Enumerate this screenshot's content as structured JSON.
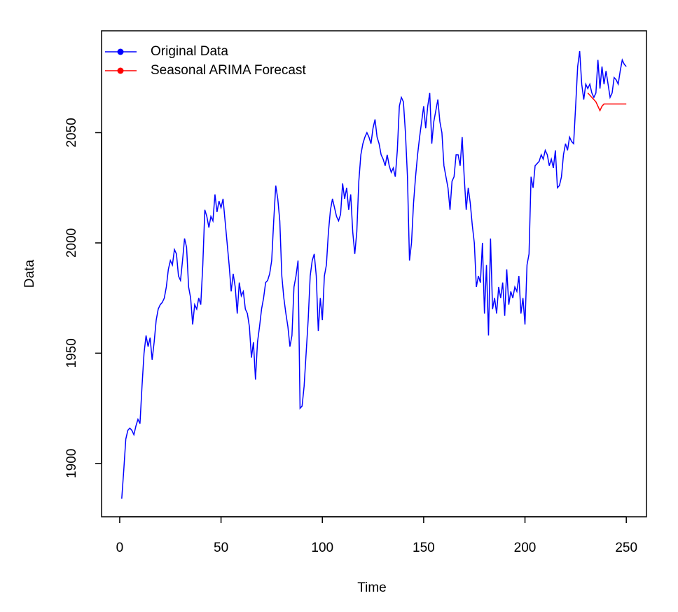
{
  "chart_data": {
    "type": "line",
    "xlabel": "Time",
    "ylabel": "Data",
    "xlim": [
      -8.96,
      259.96
    ],
    "ylim": [
      1875.8,
      2096.2
    ],
    "xticks": [
      0,
      50,
      100,
      150,
      200,
      250
    ],
    "yticks": [
      1900,
      1950,
      2000,
      2050
    ],
    "legend": "top-left",
    "series": [
      {
        "name": "Original Data",
        "color": "#0000ff",
        "x": [
          1,
          2,
          3,
          4,
          5,
          6,
          7,
          8,
          9,
          10,
          11,
          12,
          13,
          14,
          15,
          16,
          17,
          18,
          19,
          20,
          21,
          22,
          23,
          24,
          25,
          26,
          27,
          28,
          29,
          30,
          31,
          32,
          33,
          34,
          35,
          36,
          37,
          38,
          39,
          40,
          41,
          42,
          43,
          44,
          45,
          46,
          47,
          48,
          49,
          50,
          51,
          52,
          53,
          54,
          55,
          56,
          57,
          58,
          59,
          60,
          61,
          62,
          63,
          64,
          65,
          66,
          67,
          68,
          69,
          70,
          71,
          72,
          73,
          74,
          75,
          76,
          77,
          78,
          79,
          80,
          81,
          82,
          83,
          84,
          85,
          86,
          87,
          88,
          89,
          90,
          91,
          92,
          93,
          94,
          95,
          96,
          97,
          98,
          99,
          100,
          101,
          102,
          103,
          104,
          105,
          106,
          107,
          108,
          109,
          110,
          111,
          112,
          113,
          114,
          115,
          116,
          117,
          118,
          119,
          120,
          121,
          122,
          123,
          124,
          125,
          126,
          127,
          128,
          129,
          130,
          131,
          132,
          133,
          134,
          135,
          136,
          137,
          138,
          139,
          140,
          141,
          142,
          143,
          144,
          145,
          146,
          147,
          148,
          149,
          150,
          151,
          152,
          153,
          154,
          155,
          156,
          157,
          158,
          159,
          160,
          161,
          162,
          163,
          164,
          165,
          166,
          167,
          168,
          169,
          170,
          171,
          172,
          173,
          174,
          175,
          176,
          177,
          178,
          179,
          180,
          181,
          182,
          183,
          184,
          185,
          186,
          187,
          188,
          189,
          190,
          191,
          192,
          193,
          194,
          195,
          196,
          197,
          198,
          199,
          200,
          201,
          202,
          203,
          204,
          205,
          206,
          207,
          208,
          209,
          210,
          211,
          212,
          213,
          214,
          215,
          216,
          217,
          218,
          219,
          220,
          221,
          222,
          223,
          224,
          225,
          226,
          227,
          228,
          229,
          230,
          231,
          232,
          233,
          234,
          235,
          236,
          237,
          238,
          239,
          240,
          241,
          242,
          243,
          244,
          245,
          246,
          247,
          248,
          249,
          250
        ],
        "values": [
          1884,
          1897,
          1911,
          1915,
          1916,
          1915,
          1913,
          1917,
          1920,
          1918,
          1935,
          1950,
          1958,
          1953,
          1957,
          1947,
          1955,
          1965,
          1970,
          1972,
          1973,
          1975,
          1980,
          1988,
          1992,
          1990,
          1997,
          1995,
          1985,
          1983,
          1992,
          2002,
          1998,
          1980,
          1975,
          1963,
          1972,
          1970,
          1975,
          1972,
          1990,
          2015,
          2012,
          2007,
          2012,
          2010,
          2022,
          2014,
          2019,
          2016,
          2020,
          2010,
          2000,
          1990,
          1978,
          1986,
          1980,
          1968,
          1982,
          1976,
          1978,
          1970,
          1968,
          1962,
          1948,
          1955,
          1938,
          1955,
          1962,
          1970,
          1975,
          1982,
          1983,
          1986,
          1992,
          2010,
          2026,
          2020,
          2010,
          1985,
          1975,
          1968,
          1962,
          1953,
          1958,
          1980,
          1985,
          1992,
          1925,
          1926,
          1935,
          1950,
          1965,
          1985,
          1992,
          1995,
          1985,
          1960,
          1975,
          1965,
          1985,
          1990,
          2005,
          2015,
          2020,
          2016,
          2012,
          2010,
          2013,
          2027,
          2020,
          2025,
          2015,
          2022,
          2005,
          1995,
          2005,
          2028,
          2040,
          2045,
          2048,
          2050,
          2048,
          2045,
          2052,
          2056,
          2048,
          2045,
          2040,
          2038,
          2035,
          2040,
          2035,
          2032,
          2034,
          2030,
          2042,
          2062,
          2066,
          2064,
          2050,
          2030,
          1992,
          2000,
          2018,
          2030,
          2040,
          2048,
          2055,
          2062,
          2052,
          2062,
          2068,
          2045,
          2055,
          2060,
          2065,
          2055,
          2050,
          2035,
          2030,
          2025,
          2015,
          2028,
          2030,
          2040,
          2040,
          2035,
          2048,
          2030,
          2015,
          2025,
          2018,
          2008,
          2000,
          1980,
          1985,
          1982,
          2000,
          1968,
          1990,
          1958,
          2002,
          1970,
          1975,
          1968,
          1980,
          1975,
          1982,
          1967,
          1988,
          1972,
          1978,
          1975,
          1980,
          1978,
          1985,
          1968,
          1975,
          1963,
          1990,
          1995,
          2030,
          2025,
          2035,
          2036,
          2037,
          2040,
          2038,
          2042,
          2040,
          2035,
          2038,
          2034,
          2042,
          2025,
          2026,
          2030,
          2040,
          2045,
          2042,
          2048,
          2046,
          2045,
          2062,
          2080,
          2087,
          2072,
          2065,
          2072,
          2070,
          2072,
          2068,
          2066,
          2068,
          2083,
          2070,
          2080,
          2072,
          2078,
          2072,
          2066,
          2068,
          2075,
          2074,
          2072,
          2078,
          2083,
          2081,
          2080
        ]
      },
      {
        "name": "Seasonal ARIMA Forecast",
        "color": "#ff0000",
        "x": [
          231,
          232,
          233,
          234,
          235,
          236,
          237,
          238,
          239,
          240,
          241,
          242,
          243,
          244,
          245,
          246,
          247,
          248,
          249,
          250
        ],
        "values": [
          2068,
          2067,
          2066,
          2065,
          2064,
          2062,
          2060,
          2062,
          2063,
          2063,
          2063,
          2063,
          2063,
          2063,
          2063,
          2063,
          2063,
          2063,
          2063,
          2063
        ]
      }
    ]
  }
}
